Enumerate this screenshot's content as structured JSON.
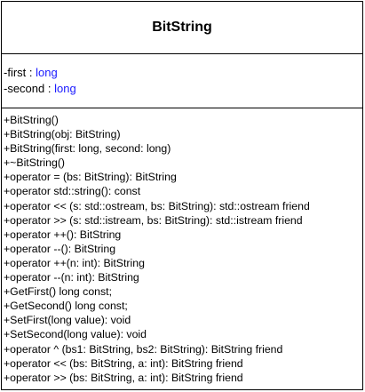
{
  "class": {
    "name": "BitString",
    "attributes": [
      {
        "prefix": "-first : ",
        "type": "long"
      },
      {
        "prefix": "-second : ",
        "type": "long"
      }
    ],
    "methods": [
      "+BitString()",
      "+BitString(obj: BitString)",
      "+BitString(first: long, second: long)",
      "+~BitString()",
      "+operator = (bs: BitString): BitString",
      "+operator std::string(): const",
      "+operator << (s: std::ostream, bs: BitString): std::ostream friend",
      "+operator >> (s: std::istream, bs: BitString): std::istream friend",
      "+operator ++(): BitString",
      "+operator --(): BitString",
      "+operator ++(n: int): BitString",
      "+operator --(n: int): BitString",
      "+GetFirst() long const;",
      "+GetSecond() long const;",
      "+SetFirst(long value): void",
      "+SetSecond(long value): void",
      "+operator ^ (bs1: BitString, bs2: BitString): BitString friend",
      "+operator << (bs: BitString, a: int): BitString friend",
      "+operator >> (bs: BitString, a: int): BitString friend"
    ]
  },
  "colors": {
    "type_text": "#1a1aff",
    "border": "#000000"
  }
}
